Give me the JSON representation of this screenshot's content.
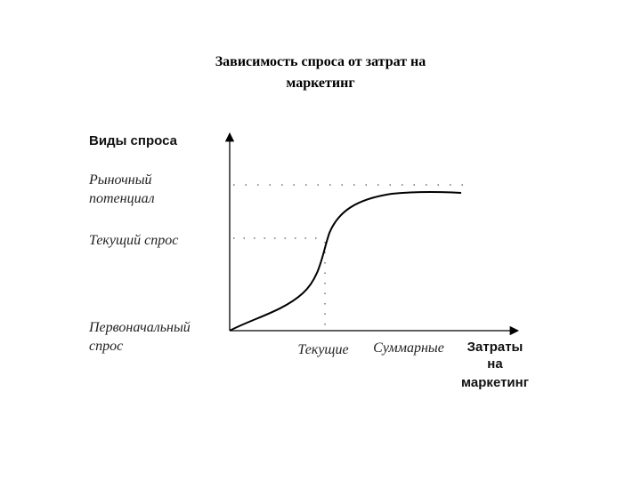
{
  "title": [
    "Зависимость спроса от затрат на",
    "маркетинг"
  ],
  "y_axis": {
    "label": "Виды спроса",
    "levels": [
      [
        "Рыночный",
        "потенциал"
      ],
      [
        "Текущий спрос"
      ],
      [
        "Первоначальный",
        "спрос"
      ]
    ]
  },
  "x_axis": {
    "label": [
      "Затраты",
      "на",
      "маркетинг"
    ],
    "points": [
      "Текущие",
      "Суммарные"
    ]
  }
}
